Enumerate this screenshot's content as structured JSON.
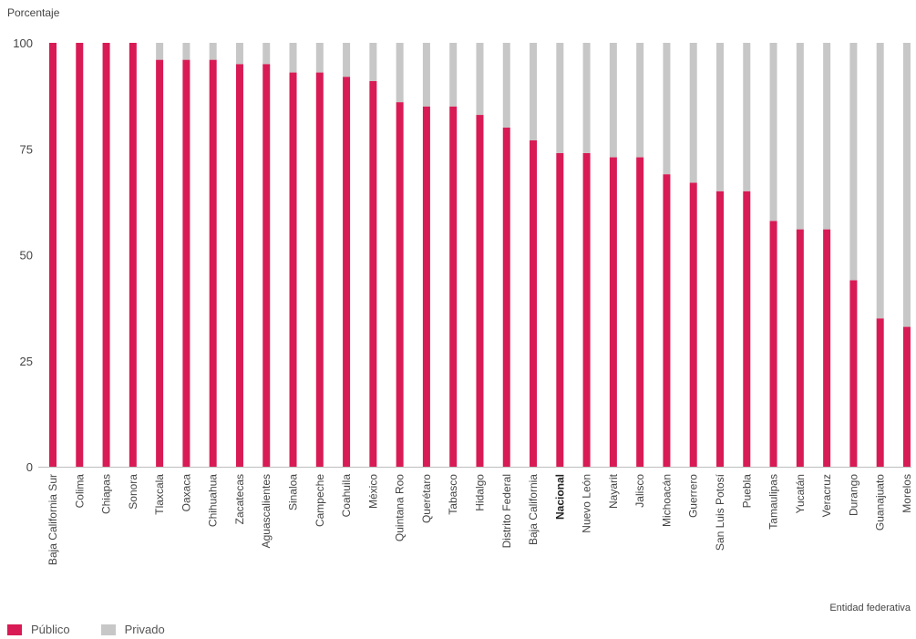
{
  "chart_data": {
    "type": "bar",
    "stacked": true,
    "ylabel": "Porcentaje",
    "xlabel": "Entidad federativa",
    "ylim": [
      0,
      100
    ],
    "yticks": [
      0,
      25,
      50,
      75,
      100
    ],
    "categories": [
      "Baja California Sur",
      "Colima",
      "Chiapas",
      "Sonora",
      "Tlaxcala",
      "Oaxaca",
      "Chihuahua",
      "Zacatecas",
      "Aguascalientes",
      "Sinaloa",
      "Campeche",
      "Coahuila",
      "México",
      "Quintana Roo",
      "Querétaro",
      "Tabasco",
      "Hidalgo",
      "Distrito Federal",
      "Baja California",
      "Nacional",
      "Nuevo León",
      "Nayarit",
      "Jalisco",
      "Michoacán",
      "Guerrero",
      "San Luis Potosí",
      "Puebla",
      "Tamaulipas",
      "Yucatán",
      "Veracruz",
      "Durango",
      "Guanajuato",
      "Morelos"
    ],
    "highlight_category": "Nacional",
    "series": [
      {
        "name": "Público",
        "color": "#d81b55",
        "values": [
          100,
          100,
          100,
          100,
          96,
          96,
          96,
          95,
          95,
          93,
          93,
          92,
          91,
          86,
          85,
          85,
          83,
          80,
          77,
          74,
          74,
          73,
          73,
          69,
          67,
          65,
          65,
          58,
          56,
          56,
          44,
          35,
          33
        ]
      },
      {
        "name": "Privado",
        "color": "#c7c7c7",
        "values": [
          0,
          0,
          0,
          0,
          4,
          4,
          4,
          5,
          5,
          7,
          7,
          8,
          9,
          14,
          15,
          15,
          17,
          20,
          23,
          26,
          26,
          27,
          27,
          31,
          33,
          35,
          35,
          42,
          44,
          44,
          56,
          65,
          67
        ]
      }
    ],
    "legend_position": "bottom-left",
    "grid": false
  }
}
